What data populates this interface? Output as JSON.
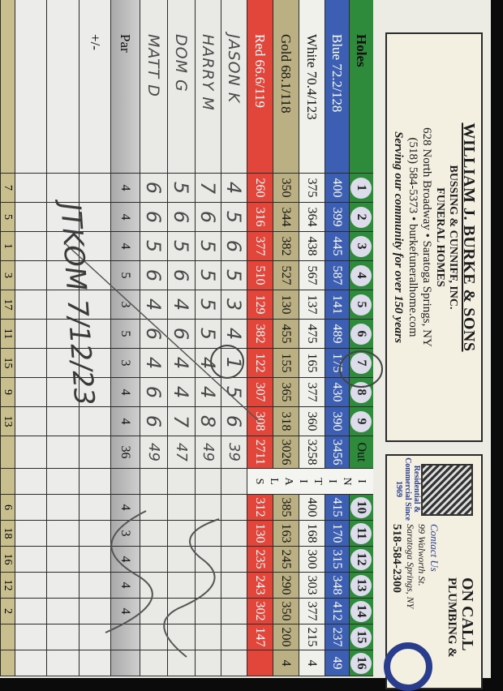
{
  "sponsor_front": {
    "name": "WILLIAM J. BURKE & SONS",
    "line2": "BUSSING & CUNNIFF, INC.",
    "line3": "FUNERAL HOMES",
    "address": "628 North Broadway • Saratoga Springs, NY",
    "contact": "(518) 584-5373 • burkefuneralhome.com",
    "tagline": "Serving our community for over 150 years"
  },
  "sponsor_back": {
    "badge": "Residential & Commercial Since 1969",
    "name": "ON CALL",
    "name2": "PLUMBING &",
    "contact_label": "Contact Us",
    "street": "99 Walworth St.",
    "city": "Saratoga Springs, NY",
    "phone": "518-584-2300"
  },
  "holes": {
    "label": "Holes",
    "front": [
      "1",
      "2",
      "3",
      "4",
      "5",
      "6",
      "7",
      "8",
      "9"
    ],
    "out": "Out",
    "initials": "INITIALS",
    "back": [
      "10",
      "11",
      "12",
      "13",
      "14",
      "15",
      "16"
    ]
  },
  "tees": [
    {
      "key": "blue",
      "label": "Blue",
      "rating": "72.2/128",
      "front": [
        "400",
        "399",
        "445",
        "587",
        "141",
        "489",
        "175",
        "430",
        "390"
      ],
      "out": "3456",
      "back": [
        "415",
        "170",
        "315",
        "348",
        "412",
        "237",
        "49"
      ]
    },
    {
      "key": "white",
      "label": "White",
      "rating": "70.4/123",
      "front": [
        "375",
        "364",
        "438",
        "567",
        "137",
        "475",
        "165",
        "377",
        "360"
      ],
      "out": "3258",
      "back": [
        "400",
        "168",
        "300",
        "303",
        "377",
        "215",
        "4"
      ]
    },
    {
      "key": "gold",
      "label": "Gold",
      "rating": "68.1/118",
      "front": [
        "350",
        "344",
        "382",
        "527",
        "130",
        "455",
        "155",
        "365",
        "318"
      ],
      "out": "3026",
      "back": [
        "385",
        "163",
        "245",
        "290",
        "350",
        "200",
        "4"
      ]
    },
    {
      "key": "red",
      "label": "Red",
      "rating": "66.6/119",
      "front": [
        "260",
        "316",
        "377",
        "510",
        "129",
        "382",
        "122",
        "307",
        "308"
      ],
      "out": "2711",
      "back": [
        "312",
        "130",
        "235",
        "243",
        "302",
        "147",
        ""
      ]
    }
  ],
  "players": [
    {
      "name": "JASON K",
      "scores": [
        "4",
        "5",
        "6",
        "5",
        "3",
        "4",
        "1",
        "5",
        "6"
      ],
      "total": "39"
    },
    {
      "name": "HARRY M",
      "scores": [
        "7",
        "6",
        "5",
        "5",
        "5",
        "5",
        "4",
        "4",
        "8"
      ],
      "total": "49"
    },
    {
      "name": "DOM G",
      "scores": [
        "5",
        "6",
        "5",
        "6",
        "4",
        "6",
        "4",
        "4",
        "7"
      ],
      "total": "47"
    },
    {
      "name": "MATT D",
      "scores": [
        "6",
        "6",
        "5",
        "6",
        "4",
        "6",
        "4",
        "6",
        "6"
      ],
      "total": "49"
    }
  ],
  "par": {
    "label": "Par",
    "front": [
      "4",
      "4",
      "4",
      "5",
      "3",
      "5",
      "3",
      "4",
      "4"
    ],
    "out": "36",
    "back": [
      "4",
      "3",
      "4",
      "4",
      "4",
      "",
      ""
    ]
  },
  "plus_minus": {
    "label": "+/-"
  },
  "handicap": {
    "front": [
      "7",
      "5",
      "1",
      "3",
      "17",
      "11",
      "15",
      "9",
      "13"
    ],
    "back": [
      "6",
      "18",
      "16",
      "12",
      "2",
      "",
      ""
    ]
  },
  "signature": "JTKOM 7/12/23"
}
